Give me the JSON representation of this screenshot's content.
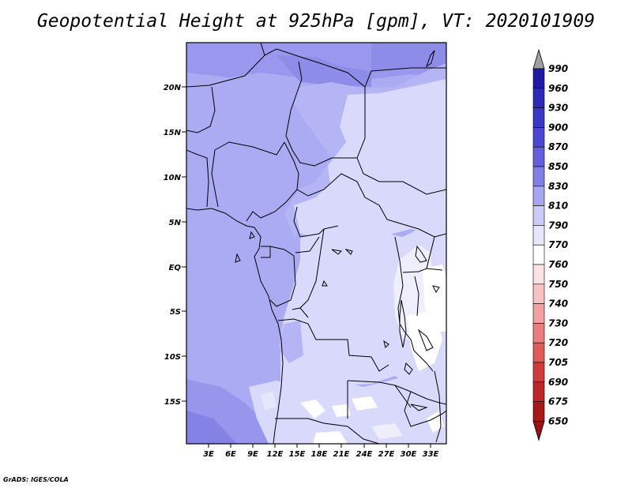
{
  "title": "Geopotential Height at 925hPa [gpm], VT: 2020101909",
  "footer": "GrADS: IGES/COLA",
  "map": {
    "lat_labels": [
      "20N",
      "15N",
      "10N",
      "5N",
      "EQ",
      "5S",
      "10S",
      "15S"
    ],
    "lon_labels": [
      "3E",
      "6E",
      "9E",
      "12E",
      "15E",
      "18E",
      "21E",
      "24E",
      "27E",
      "30E",
      "33E"
    ],
    "background_fill": "#ababf4"
  },
  "colorbar": {
    "levels": [
      "990",
      "960",
      "930",
      "900",
      "870",
      "850",
      "830",
      "810",
      "790",
      "770",
      "760",
      "750",
      "740",
      "730",
      "720",
      "705",
      "690",
      "675",
      "650"
    ],
    "colors": [
      "#120d8c",
      "#1f1aa5",
      "#2d2ab8",
      "#3a38c6",
      "#4a48d2",
      "#6260dc",
      "#8280e6",
      "#a7a6ef",
      "#cccbf7",
      "#e6e6fc",
      "#ffffff",
      "#fce3e3",
      "#f8c2c2",
      "#f3a0a0",
      "#ec7d7d",
      "#e05a5a",
      "#d03c3c",
      "#bd2626",
      "#a81818",
      "#9b1010"
    ],
    "top_arrow_color": "#a0a0a0",
    "bottom_arrow_color": "#9b1010"
  }
}
